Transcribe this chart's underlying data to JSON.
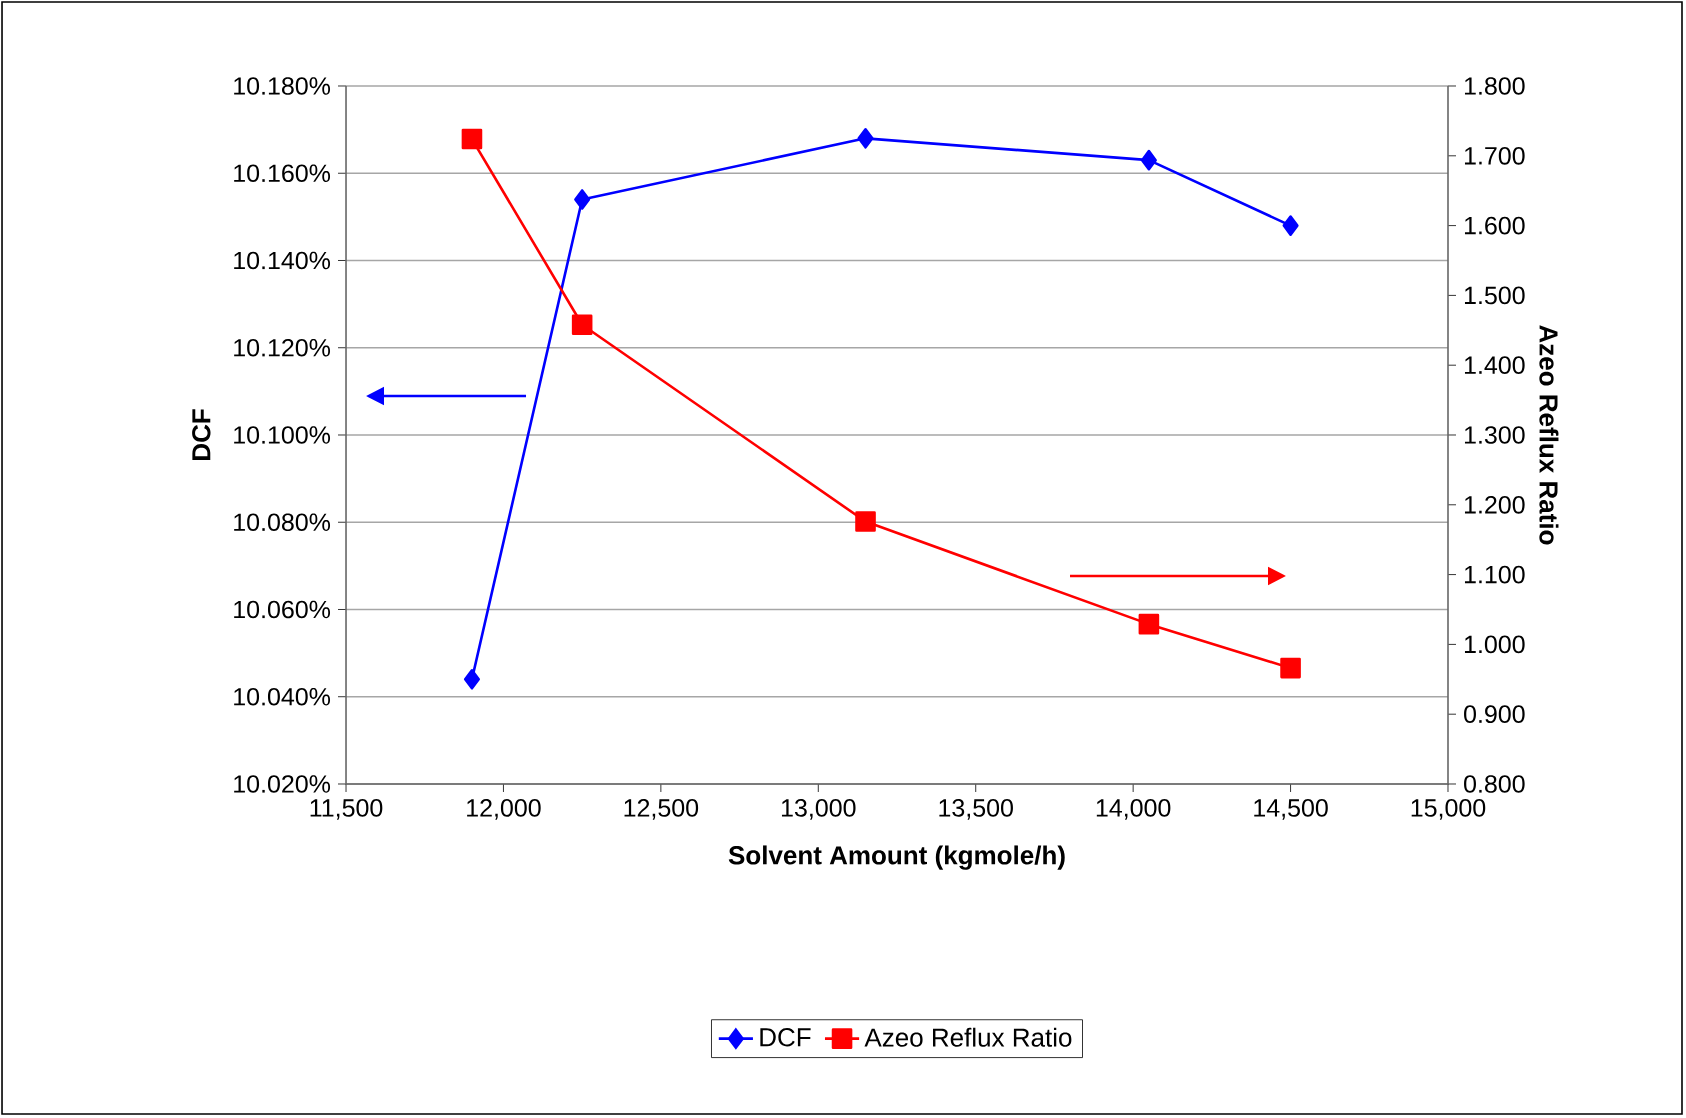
{
  "chart_data": {
    "type": "line",
    "xlabel": "Solvent Amount (kgmole/h)",
    "ylabel": "DCF",
    "y2label": "Azeo Reflux Ratio",
    "x": [
      11900,
      12250,
      13150,
      14050,
      14500
    ],
    "series": [
      {
        "name": "DCF",
        "color": "#0000ff",
        "marker": "diamond",
        "values": [
          10.044,
          10.154,
          10.168,
          10.163,
          10.148
        ]
      },
      {
        "name": "Azeo Reflux Ratio",
        "color": "#ff0000",
        "marker": "square",
        "axis": "y2",
        "values": [
          1.724,
          1.458,
          1.176,
          1.029,
          0.966
        ]
      }
    ],
    "xlim": [
      11500,
      15000
    ],
    "xticks": [
      {
        "value": 11500,
        "label": "11,500"
      },
      {
        "value": 12000,
        "label": "12,000"
      },
      {
        "value": 12500,
        "label": "12,500"
      },
      {
        "value": 13000,
        "label": "13,000"
      },
      {
        "value": 13500,
        "label": "13,500"
      },
      {
        "value": 14000,
        "label": "14,000"
      },
      {
        "value": 14500,
        "label": "14,500"
      },
      {
        "value": 15000,
        "label": "15,000"
      }
    ],
    "ylim": [
      10.02,
      10.18
    ],
    "yticks": [
      {
        "value": 10.02,
        "label": "10.020%"
      },
      {
        "value": 10.04,
        "label": "10.040%"
      },
      {
        "value": 10.06,
        "label": "10.060%"
      },
      {
        "value": 10.08,
        "label": "10.080%"
      },
      {
        "value": 10.1,
        "label": "10.100%"
      },
      {
        "value": 10.12,
        "label": "10.120%"
      },
      {
        "value": 10.14,
        "label": "10.140%"
      },
      {
        "value": 10.16,
        "label": "10.160%"
      },
      {
        "value": 10.18,
        "label": "10.180%"
      }
    ],
    "y2lim": [
      0.8,
      1.8
    ],
    "y2ticks": [
      {
        "value": 0.8,
        "label": "0.800"
      },
      {
        "value": 0.9,
        "label": "0.900"
      },
      {
        "value": 1.0,
        "label": "1.000"
      },
      {
        "value": 1.1,
        "label": "1.100"
      },
      {
        "value": 1.2,
        "label": "1.200"
      },
      {
        "value": 1.3,
        "label": "1.300"
      },
      {
        "value": 1.4,
        "label": "1.400"
      },
      {
        "value": 1.5,
        "label": "1.500"
      },
      {
        "value": 1.6,
        "label": "1.600"
      },
      {
        "value": 1.7,
        "label": "1.700"
      },
      {
        "value": 1.8,
        "label": "1.800"
      }
    ],
    "grid": "y",
    "legend": "bottom"
  }
}
